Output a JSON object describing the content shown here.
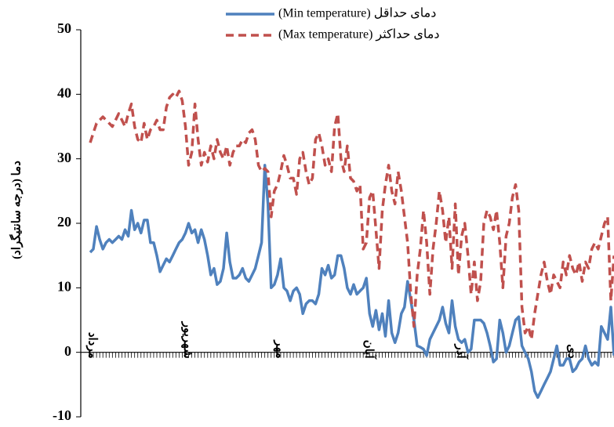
{
  "chart_data": {
    "type": "line",
    "y_label": "دما (درجه سانتیگراد)",
    "categories": [
      "مرداد",
      null,
      null,
      null,
      null,
      null,
      null,
      null,
      null,
      null,
      null,
      null,
      null,
      null,
      null,
      null,
      null,
      null,
      null,
      null,
      null,
      null,
      null,
      null,
      null,
      null,
      null,
      null,
      null,
      null,
      "شهریور",
      null,
      null,
      null,
      null,
      null,
      null,
      null,
      null,
      null,
      null,
      null,
      null,
      null,
      null,
      null,
      null,
      null,
      null,
      null,
      null,
      null,
      null,
      null,
      null,
      null,
      null,
      null,
      null,
      "مهر",
      null,
      null,
      null,
      null,
      null,
      null,
      null,
      null,
      null,
      null,
      null,
      null,
      null,
      null,
      null,
      null,
      null,
      null,
      null,
      null,
      null,
      null,
      null,
      null,
      null,
      null,
      null,
      "آبان",
      null,
      null,
      null,
      null,
      null,
      null,
      null,
      null,
      null,
      null,
      null,
      null,
      null,
      null,
      null,
      null,
      null,
      null,
      null,
      null,
      null,
      null,
      null,
      null,
      null,
      null,
      null,
      null,
      "آذر",
      null,
      null,
      null,
      null,
      null,
      null,
      null,
      null,
      null,
      null,
      null,
      null,
      null,
      null,
      null,
      null,
      null,
      null,
      null,
      null,
      null,
      null,
      null,
      null,
      null,
      null,
      null,
      null,
      null,
      null,
      null,
      null,
      null,
      null,
      "دی",
      null,
      null,
      null,
      null,
      null,
      null,
      null,
      null,
      null,
      null,
      null,
      null,
      null,
      null
    ],
    "series": [
      {
        "name": "دمای حداقل (Min temperature)",
        "color": "#4f81bd",
        "dash": false,
        "values": [
          15.5,
          16,
          19.5,
          17.5,
          16,
          17,
          17.5,
          17,
          17.5,
          18,
          17.5,
          19,
          18,
          22,
          19,
          20,
          18.5,
          20.5,
          20.5,
          17,
          17,
          15,
          12.5,
          13.5,
          14.5,
          14,
          15,
          16,
          17,
          17.5,
          18.5,
          20,
          18.5,
          19,
          17,
          19,
          17.5,
          15,
          12,
          13,
          10.5,
          11,
          13,
          18.5,
          14,
          11.5,
          11.5,
          12,
          13,
          11.5,
          11,
          12,
          13,
          15,
          17,
          29,
          23,
          10,
          10.5,
          12,
          14.5,
          10,
          9.5,
          8,
          9.5,
          10,
          9,
          6,
          7.5,
          8,
          8,
          7.5,
          9,
          13,
          12,
          13.5,
          11.5,
          12,
          15,
          15,
          13,
          10,
          9,
          10.5,
          9,
          9.5,
          10,
          11.5,
          6,
          4,
          6.5,
          3.5,
          6,
          2.5,
          8,
          3,
          1.5,
          3,
          6,
          7,
          11,
          8,
          5,
          1,
          0.8,
          0.5,
          -0.5,
          2,
          3,
          4,
          5,
          7,
          4.5,
          3,
          8,
          4,
          2,
          1.5,
          2,
          0,
          0.5,
          5,
          5,
          5,
          4.5,
          3,
          1,
          -1.5,
          -1,
          5,
          3,
          0,
          1,
          3,
          5,
          5.5,
          1,
          0,
          -1,
          -3,
          -6,
          -7,
          -6,
          -5,
          -4,
          -3,
          -1,
          1,
          -2,
          -2,
          -1,
          -1,
          -3,
          -2.5,
          -1.5,
          -1,
          1,
          -1,
          -2,
          -1.5,
          -2,
          4,
          3,
          2,
          7,
          -0.5
        ]
      },
      {
        "name": "دمای حداکثر (Max temperature)",
        "color": "#c0504d",
        "dash": true,
        "values": [
          32.5,
          34,
          35.5,
          36,
          36.5,
          36,
          35.5,
          35,
          36,
          37,
          36,
          35,
          37,
          38.5,
          35,
          33,
          32.5,
          35.5,
          33,
          34.5,
          35,
          36,
          34.5,
          34.5,
          38,
          39.5,
          40,
          39.5,
          40.5,
          39,
          35,
          29,
          31,
          38.5,
          33,
          29,
          31,
          29.5,
          32,
          30,
          33,
          31,
          30,
          32,
          29,
          31,
          32,
          32,
          33,
          32.5,
          34,
          34.5,
          33,
          29,
          28,
          28.5,
          28,
          21,
          25,
          26,
          28,
          30.5,
          29,
          27,
          27,
          24.5,
          30,
          31,
          28,
          26,
          27,
          33,
          34,
          32,
          29,
          30,
          28,
          35,
          37,
          30,
          28,
          32,
          27,
          26.5,
          25,
          26,
          16,
          17,
          24,
          25,
          19,
          13,
          22,
          26,
          29,
          25,
          23,
          28,
          25,
          21,
          17,
          9,
          4,
          12,
          16,
          22,
          17,
          9,
          16,
          20,
          25,
          22,
          17,
          21,
          13,
          23,
          12,
          18,
          20,
          15,
          9,
          14,
          8,
          11,
          20,
          22,
          21,
          19,
          22,
          17,
          10,
          18,
          20,
          24,
          26,
          22,
          7,
          3,
          4,
          2,
          6,
          9,
          12,
          14,
          11,
          9,
          12,
          11,
          10,
          14,
          12,
          15,
          13,
          12,
          14,
          11,
          14,
          13,
          16,
          17,
          16,
          18,
          20,
          21,
          8,
          15
        ]
      }
    ],
    "ylim": [
      -10,
      50
    ],
    "yticks": [
      -10,
      0,
      10,
      20,
      30,
      40,
      50
    ]
  }
}
